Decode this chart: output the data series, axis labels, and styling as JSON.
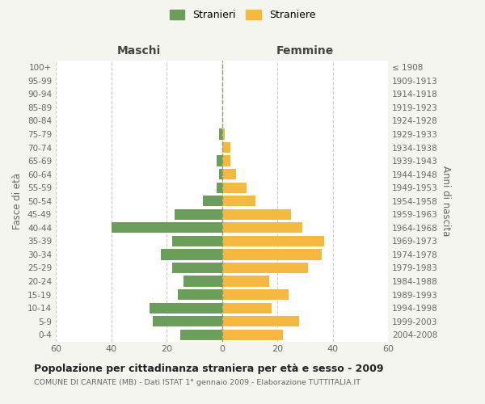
{
  "age_groups": [
    "0-4",
    "5-9",
    "10-14",
    "15-19",
    "20-24",
    "25-29",
    "30-34",
    "35-39",
    "40-44",
    "45-49",
    "50-54",
    "55-59",
    "60-64",
    "65-69",
    "70-74",
    "75-79",
    "80-84",
    "85-89",
    "90-94",
    "95-99",
    "100+"
  ],
  "birth_years": [
    "2004-2008",
    "1999-2003",
    "1994-1998",
    "1989-1993",
    "1984-1988",
    "1979-1983",
    "1974-1978",
    "1969-1973",
    "1964-1968",
    "1959-1963",
    "1954-1958",
    "1949-1953",
    "1944-1948",
    "1939-1943",
    "1934-1938",
    "1929-1933",
    "1924-1928",
    "1919-1923",
    "1914-1918",
    "1909-1913",
    "≤ 1908"
  ],
  "males": [
    15,
    25,
    26,
    16,
    14,
    18,
    22,
    18,
    40,
    17,
    7,
    2,
    1,
    2,
    0,
    1,
    0,
    0,
    0,
    0,
    0
  ],
  "females": [
    22,
    28,
    18,
    24,
    17,
    31,
    36,
    37,
    29,
    25,
    12,
    9,
    5,
    3,
    3,
    1,
    0,
    0,
    0,
    0,
    0
  ],
  "male_color": "#6a9e5a",
  "female_color": "#f5b942",
  "background_color": "#f5f5f0",
  "plot_bg_color": "#ffffff",
  "grid_color": "#cccccc",
  "title_main": "Popolazione per cittadinanza straniera per età e sesso - 2009",
  "subtitle": "COMUNE DI CARNATE (MB) - Dati ISTAT 1° gennaio 2009 - Elaborazione TUTTITALIA.IT",
  "legend_male": "Stranieri",
  "legend_female": "Straniere",
  "header_left": "Maschi",
  "header_right": "Femmine",
  "ylabel_left": "Fasce di età",
  "ylabel_right": "Anni di nascita",
  "xlim": 60,
  "center_line_color": "#999966"
}
